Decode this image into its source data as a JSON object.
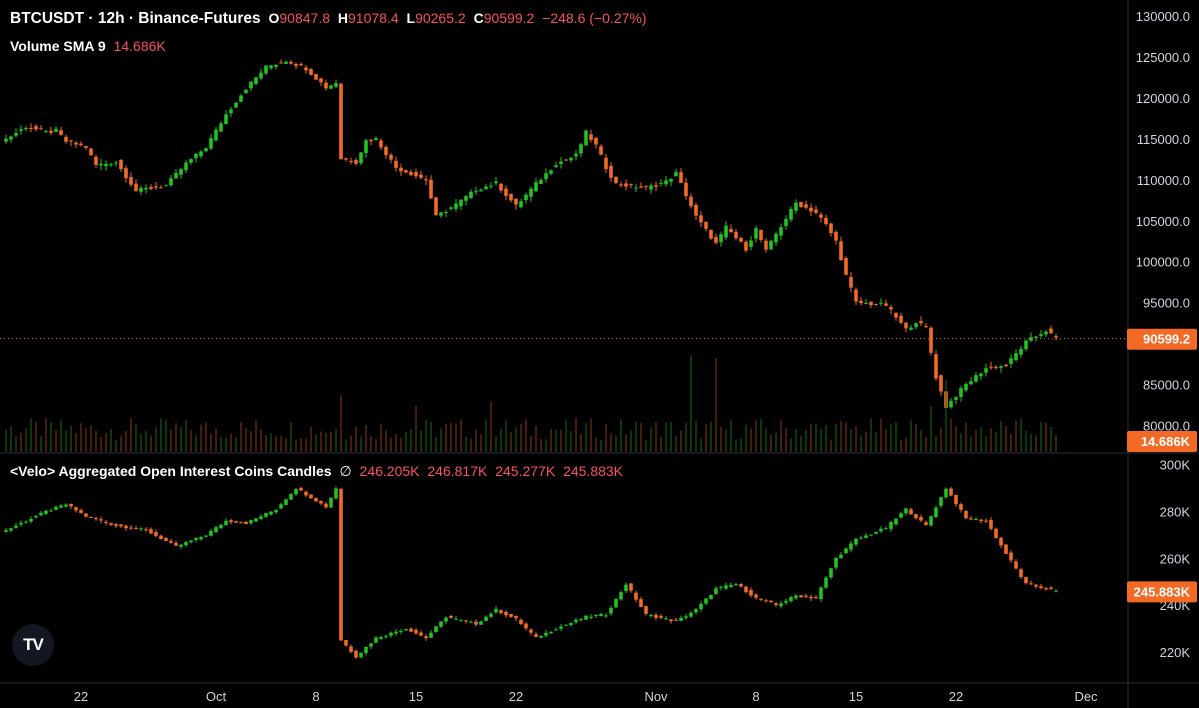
{
  "legend": {
    "symbol": "BTCUSDT · 12h · Binance-Futures",
    "open_label": "O",
    "open": "90847.8",
    "high_label": "H",
    "high": "91078.4",
    "low_label": "L",
    "low": "90265.2",
    "close_label": "C",
    "close": "90599.2",
    "change": "−248.6 (−0.27%)",
    "volume_label": "Volume SMA 9",
    "volume_value": "14.686K",
    "oi_label": "<Velo> Aggregated Open Interest Coins Candles",
    "oi_symbol": "∅",
    "oi_values": [
      "246.205K",
      "246.817K",
      "245.277K",
      "245.883K"
    ]
  },
  "colors": {
    "up": "#21c321",
    "down": "#f26a25",
    "price_tag": "#f26a25",
    "background": "#000000",
    "text": "#d1d4dc"
  },
  "logo": {
    "text": "TV",
    "icon": "tradingview-logo-icon"
  },
  "chart_data": [
    {
      "type": "candlestick",
      "title": "BTCUSDT · 12h · Binance-Futures",
      "ylim": [
        77000,
        131000
      ],
      "yticks": [
        130000,
        125000,
        120000,
        115000,
        110000,
        105000,
        100000,
        95000,
        85000,
        80000
      ],
      "ytick_labels": [
        "130000.0",
        "125000.0",
        "120000.0",
        "115000.0",
        "110000.0",
        "105000.0",
        "100000.0",
        "95000.0",
        "85000.0",
        "80000.0"
      ],
      "last_price": 90599.2,
      "last_price_label": "90599.2",
      "close_path": [
        [
          0,
          115000
        ],
        [
          4,
          116500
        ],
        [
          8,
          115800
        ],
        [
          10,
          116000
        ],
        [
          12,
          114700
        ],
        [
          16,
          114000
        ],
        [
          18,
          111800
        ],
        [
          22,
          112200
        ],
        [
          26,
          108700
        ],
        [
          32,
          109300
        ],
        [
          36,
          112000
        ],
        [
          40,
          114000
        ],
        [
          44,
          118000
        ],
        [
          48,
          121200
        ],
        [
          52,
          123800
        ],
        [
          56,
          124600
        ],
        [
          60,
          123600
        ],
        [
          64,
          121300
        ],
        [
          66,
          121900
        ],
        [
          67,
          112600
        ],
        [
          70,
          112200
        ],
        [
          72,
          114800
        ],
        [
          74,
          115000
        ],
        [
          78,
          111500
        ],
        [
          84,
          110000
        ],
        [
          86,
          105500
        ],
        [
          90,
          107000
        ],
        [
          94,
          108800
        ],
        [
          98,
          109600
        ],
        [
          102,
          106800
        ],
        [
          106,
          109500
        ],
        [
          110,
          112000
        ],
        [
          114,
          113000
        ],
        [
          116,
          115800
        ],
        [
          118,
          114200
        ],
        [
          120,
          111500
        ],
        [
          122,
          109500
        ],
        [
          128,
          109000
        ],
        [
          132,
          109800
        ],
        [
          134,
          110800
        ],
        [
          138,
          105500
        ],
        [
          142,
          102200
        ],
        [
          144,
          104200
        ],
        [
          148,
          101600
        ],
        [
          150,
          104000
        ],
        [
          152,
          101300
        ],
        [
          154,
          103400
        ],
        [
          158,
          107200
        ],
        [
          162,
          106000
        ],
        [
          164,
          104500
        ],
        [
          166,
          102500
        ],
        [
          168,
          98300
        ],
        [
          170,
          95000
        ],
        [
          176,
          94700
        ],
        [
          180,
          91700
        ],
        [
          182,
          92700
        ],
        [
          184,
          91900
        ],
        [
          186,
          85900
        ],
        [
          188,
          82300
        ],
        [
          192,
          85000
        ],
        [
          196,
          87000
        ],
        [
          200,
          87300
        ],
        [
          204,
          90200
        ],
        [
          208,
          91600
        ],
        [
          210,
          90600
        ]
      ]
    },
    {
      "type": "bar",
      "title": "Volume SMA 9",
      "last_value_label": "14.686K",
      "spike_indices": [
        67,
        82,
        97,
        137,
        142,
        185,
        188
      ]
    },
    {
      "type": "candlestick",
      "title": "<Velo> Aggregated Open Interest Coins Candles",
      "ylim": [
        208000,
        302000
      ],
      "yticks": [
        300000,
        280000,
        260000,
        240000,
        220000
      ],
      "ytick_labels": [
        "300K",
        "280K",
        "260K",
        "240K",
        "220K"
      ],
      "last_value": 245883,
      "last_value_label": "245.883K",
      "close_path": [
        [
          0,
          272000
        ],
        [
          8,
          280000
        ],
        [
          12,
          283000
        ],
        [
          16,
          278000
        ],
        [
          22,
          274000
        ],
        [
          28,
          272000
        ],
        [
          34,
          265000
        ],
        [
          40,
          270000
        ],
        [
          44,
          276000
        ],
        [
          48,
          275000
        ],
        [
          54,
          281000
        ],
        [
          58,
          290000
        ],
        [
          64,
          282000
        ],
        [
          66,
          290000
        ],
        [
          67,
          225000
        ],
        [
          70,
          218000
        ],
        [
          74,
          226000
        ],
        [
          80,
          230000
        ],
        [
          84,
          226000
        ],
        [
          88,
          235000
        ],
        [
          94,
          232000
        ],
        [
          98,
          238000
        ],
        [
          102,
          234000
        ],
        [
          106,
          226000
        ],
        [
          110,
          230000
        ],
        [
          116,
          235000
        ],
        [
          120,
          236000
        ],
        [
          124,
          249000
        ],
        [
          128,
          236000
        ],
        [
          134,
          233000
        ],
        [
          138,
          238000
        ],
        [
          142,
          247000
        ],
        [
          146,
          249000
        ],
        [
          150,
          243000
        ],
        [
          154,
          240000
        ],
        [
          158,
          244000
        ],
        [
          162,
          243000
        ],
        [
          166,
          260000
        ],
        [
          170,
          268000
        ],
        [
          176,
          273000
        ],
        [
          180,
          281000
        ],
        [
          184,
          274000
        ],
        [
          188,
          290000
        ],
        [
          192,
          277000
        ],
        [
          196,
          276000
        ],
        [
          200,
          262000
        ],
        [
          204,
          249000
        ],
        [
          208,
          247000
        ],
        [
          210,
          245900
        ]
      ]
    }
  ],
  "xaxis": {
    "labels": [
      {
        "text": "22",
        "i": 15
      },
      {
        "text": "Oct",
        "i": 42
      },
      {
        "text": "8",
        "i": 62
      },
      {
        "text": "15",
        "i": 82
      },
      {
        "text": "22",
        "i": 102
      },
      {
        "text": "Nov",
        "i": 130
      },
      {
        "text": "8",
        "i": 150
      },
      {
        "text": "15",
        "i": 170
      },
      {
        "text": "22",
        "i": 190
      },
      {
        "text": "Dec",
        "i": 216
      }
    ]
  }
}
